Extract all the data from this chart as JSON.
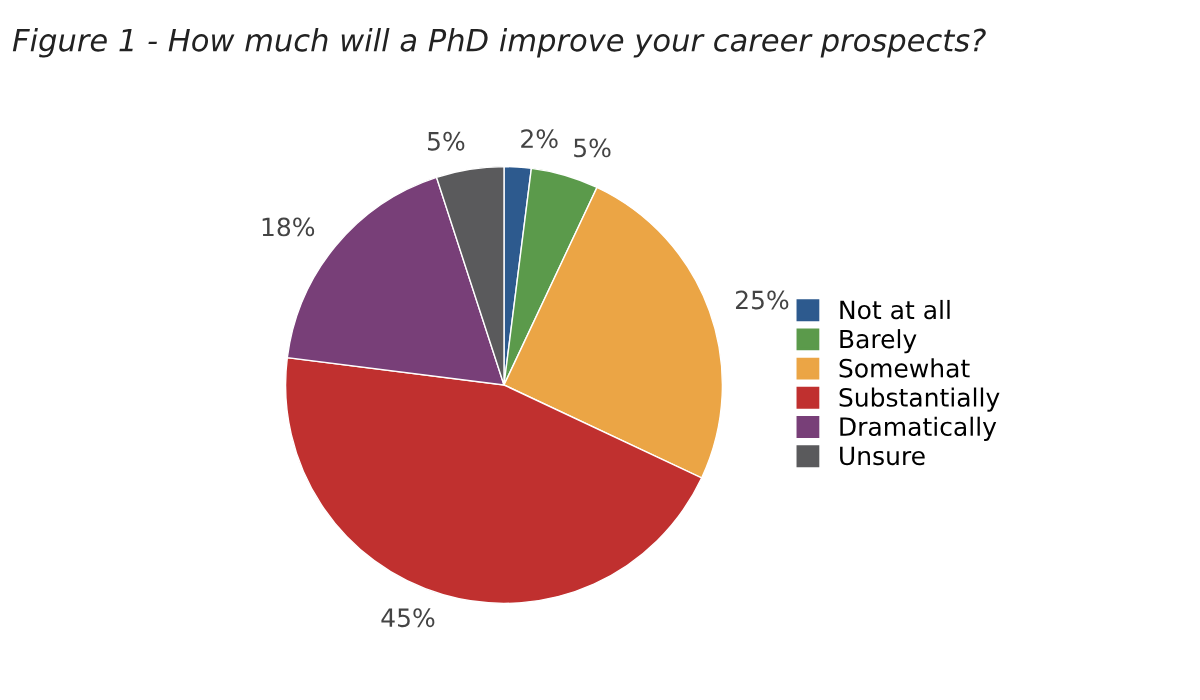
{
  "chart_data": {
    "type": "pie",
    "title": "Figure 1 - How much will a PhD improve your career prospects?",
    "categories": [
      "Not at all",
      "Barely",
      "Somewhat",
      "Substantially",
      "Dramatically",
      "Unsure"
    ],
    "values": [
      2,
      5,
      25,
      45,
      18,
      5
    ],
    "colors": [
      "#2d5a8e",
      "#5b9a4b",
      "#eba545",
      "#c0302f",
      "#783f78",
      "#5a5a5c"
    ],
    "value_labels": [
      "2%",
      "5%",
      "25%",
      "45%",
      "18%",
      "5%"
    ],
    "legend": "right"
  }
}
